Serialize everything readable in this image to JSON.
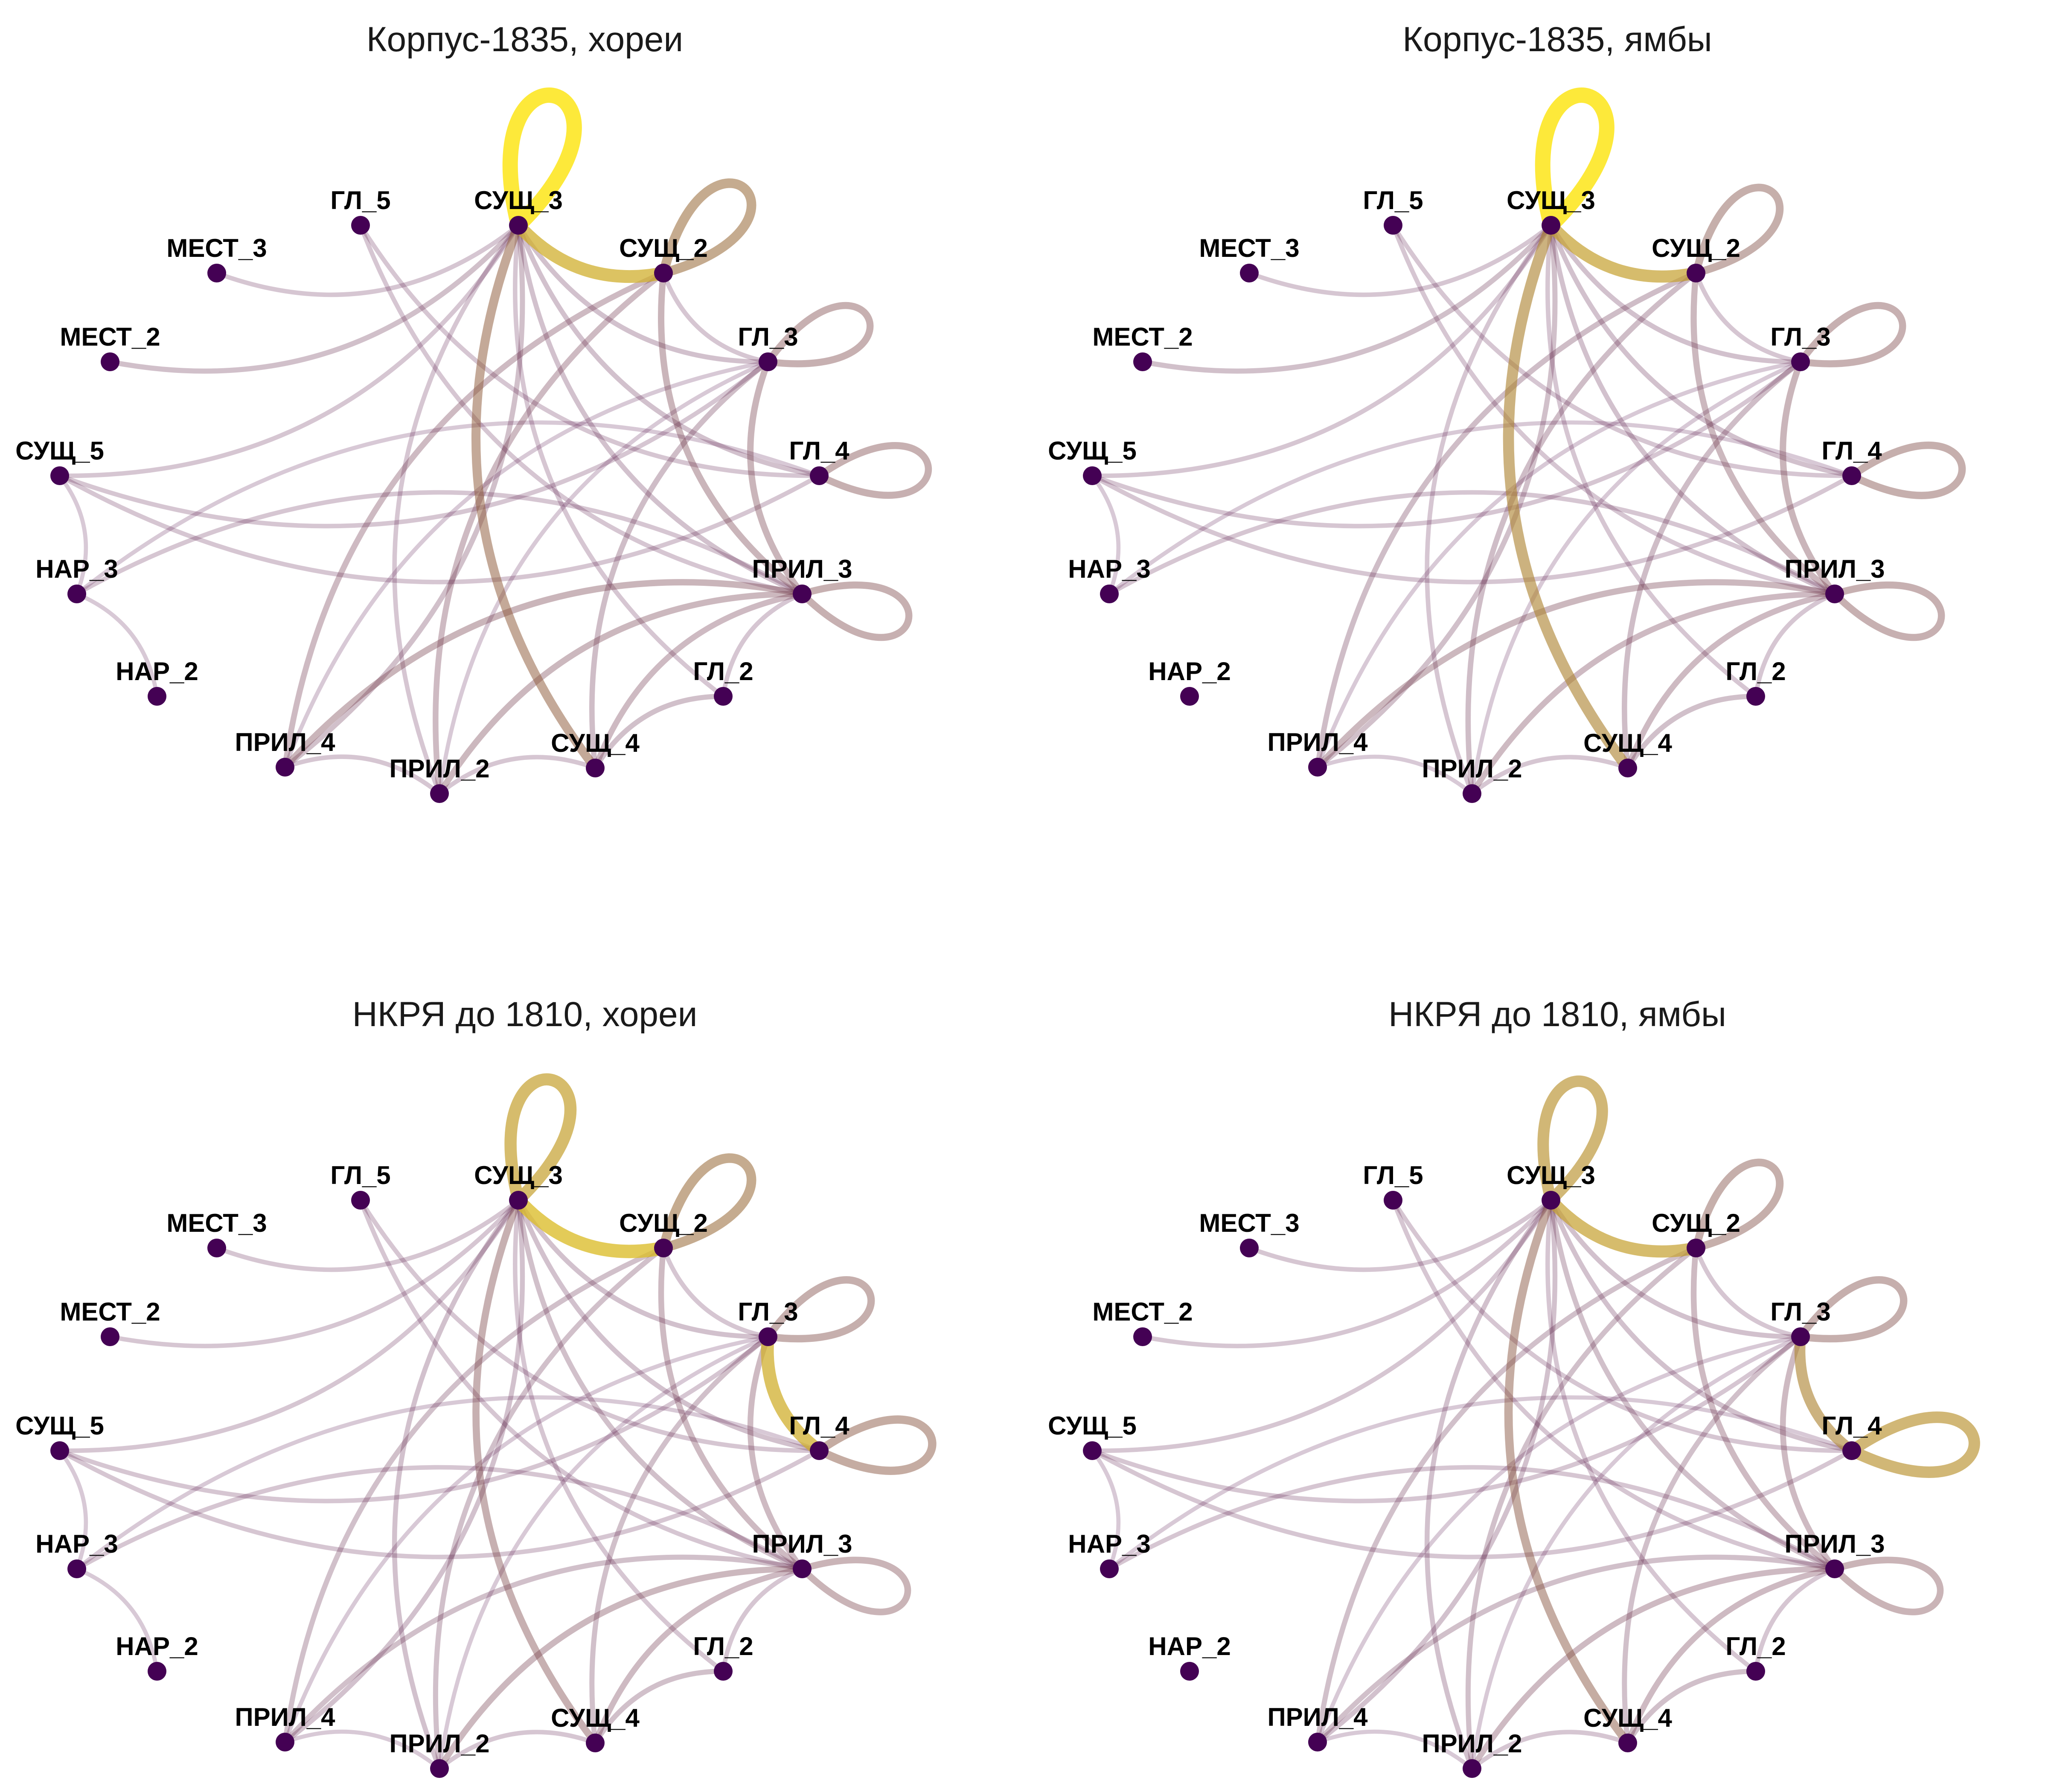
{
  "chart_data": {
    "type": "network",
    "node_color": "#440154",
    "edge_colors": {
      "low": "#440154",
      "mid": "#8d5b3a",
      "high": "#fde725"
    },
    "nodes": [
      "ГЛ_5",
      "СУЩ_3",
      "СУЩ_2",
      "ГЛ_3",
      "ГЛ_4",
      "ПРИЛ_3",
      "ГЛ_2",
      "СУЩ_4",
      "ПРИЛ_2",
      "ПРИЛ_4",
      "НАР_2",
      "НАР_3",
      "СУЩ_5",
      "МЕСТ_2",
      "МЕСТ_3"
    ],
    "panels": [
      {
        "title": "Корпус-1835, хореи",
        "edges": [
          [
            "СУЩ_3",
            "СУЩ_3",
            1.0
          ],
          [
            "СУЩ_3",
            "СУЩ_2",
            0.8
          ],
          [
            "СУЩ_2",
            "СУЩ_2",
            0.55
          ],
          [
            "СУЩ_3",
            "СУЩ_4",
            0.5
          ],
          [
            "ГЛ_3",
            "ГЛ_3",
            0.35
          ],
          [
            "ГЛ_4",
            "ГЛ_4",
            0.35
          ],
          [
            "ПРИЛ_3",
            "ПРИЛ_3",
            0.35
          ],
          [
            "ГЛ_3",
            "ПРИЛ_3",
            0.3
          ],
          [
            "СУЩ_2",
            "ПРИЛ_3",
            0.3
          ],
          [
            "ПРИЛ_3",
            "ПРИЛ_4",
            0.3
          ],
          [
            "ПРИЛ_3",
            "ПРИЛ_2",
            0.28
          ],
          [
            "СУЩ_2",
            "ПРИЛ_4",
            0.25
          ],
          [
            "СУЩ_2",
            "ПРИЛ_2",
            0.25
          ],
          [
            "ПРИЛ_3",
            "СУЩ_4",
            0.25
          ],
          [
            "ГЛ_3",
            "СУЩ_4",
            0.22
          ],
          [
            "СУЩ_4",
            "ГЛ_2",
            0.2
          ],
          [
            "СУЩ_3",
            "ГЛ_3",
            0.18
          ],
          [
            "СУЩ_3",
            "ГЛ_4",
            0.18
          ],
          [
            "СУЩ_3",
            "ПРИЛ_3",
            0.18
          ],
          [
            "СУЩ_3",
            "ПРИЛ_4",
            0.2
          ],
          [
            "СУЩ_3",
            "ПРИЛ_2",
            0.15
          ],
          [
            "СУЩ_3",
            "МЕСТ_2",
            0.2
          ],
          [
            "СУЩ_3",
            "МЕСТ_3",
            0.15
          ],
          [
            "СУЩ_3",
            "СУЩ_5",
            0.15
          ],
          [
            "СУЩ_3",
            "ГЛ_2",
            0.15
          ],
          [
            "ГЛ_5",
            "ГЛ_4",
            0.15
          ],
          [
            "ГЛ_5",
            "ПРИЛ_3",
            0.15
          ],
          [
            "ГЛ_3",
            "СУЩ_5",
            0.15
          ],
          [
            "ГЛ_4",
            "СУЩ_5",
            0.15
          ],
          [
            "ПРИЛ_3",
            "НАР_3",
            0.15
          ],
          [
            "ГЛ_4",
            "НАР_3",
            0.12
          ],
          [
            "СУЩ_5",
            "НАР_3",
            0.12
          ],
          [
            "НАР_3",
            "НАР_2",
            0.12
          ],
          [
            "ПРИЛ_4",
            "ПРИЛ_2",
            0.15
          ],
          [
            "ПРИЛ_2",
            "СУЩ_4",
            0.15
          ],
          [
            "ПРИЛ_3",
            "ГЛ_2",
            0.15
          ],
          [
            "СУЩ_2",
            "ГЛ_3",
            0.15
          ],
          [
            "ГЛ_3",
            "ПРИЛ_2",
            0.12
          ],
          [
            "ПРИЛ_4",
            "ГЛ_3",
            0.12
          ]
        ]
      },
      {
        "title": "Корпус-1835, ямбы",
        "edges": [
          [
            "СУЩ_3",
            "СУЩ_3",
            1.0
          ],
          [
            "СУЩ_3",
            "СУЩ_2",
            0.75
          ],
          [
            "СУЩ_3",
            "СУЩ_4",
            0.65
          ],
          [
            "СУЩ_2",
            "СУЩ_2",
            0.4
          ],
          [
            "ГЛ_3",
            "ГЛ_3",
            0.35
          ],
          [
            "ГЛ_4",
            "ГЛ_4",
            0.38
          ],
          [
            "ПРИЛ_3",
            "ПРИЛ_3",
            0.35
          ],
          [
            "ГЛ_3",
            "ПРИЛ_3",
            0.3
          ],
          [
            "СУЩ_2",
            "ПРИЛ_3",
            0.28
          ],
          [
            "ПРИЛ_3",
            "ПРИЛ_4",
            0.28
          ],
          [
            "ПРИЛ_3",
            "ПРИЛ_2",
            0.25
          ],
          [
            "СУЩ_2",
            "ПРИЛ_4",
            0.22
          ],
          [
            "СУЩ_2",
            "ПРИЛ_2",
            0.22
          ],
          [
            "ПРИЛ_3",
            "СУЩ_4",
            0.25
          ],
          [
            "ГЛ_3",
            "СУЩ_4",
            0.22
          ],
          [
            "СУЩ_4",
            "ГЛ_2",
            0.2
          ],
          [
            "СУЩ_3",
            "ГЛ_3",
            0.18
          ],
          [
            "СУЩ_3",
            "ГЛ_4",
            0.18
          ],
          [
            "СУЩ_3",
            "ПРИЛ_3",
            0.18
          ],
          [
            "СУЩ_3",
            "ПРИЛ_4",
            0.2
          ],
          [
            "СУЩ_3",
            "ПРИЛ_2",
            0.15
          ],
          [
            "СУЩ_3",
            "МЕСТ_2",
            0.2
          ],
          [
            "СУЩ_3",
            "МЕСТ_3",
            0.15
          ],
          [
            "СУЩ_3",
            "СУЩ_5",
            0.15
          ],
          [
            "СУЩ_3",
            "ГЛ_2",
            0.15
          ],
          [
            "ГЛ_5",
            "ГЛ_4",
            0.15
          ],
          [
            "ГЛ_5",
            "ПРИЛ_3",
            0.15
          ],
          [
            "ГЛ_3",
            "СУЩ_5",
            0.15
          ],
          [
            "ГЛ_4",
            "СУЩ_5",
            0.15
          ],
          [
            "ПРИЛ_3",
            "НАР_3",
            0.15
          ],
          [
            "ГЛ_4",
            "НАР_3",
            0.12
          ],
          [
            "СУЩ_5",
            "НАР_3",
            0.12
          ],
          [
            "ПРИЛ_4",
            "ПРИЛ_2",
            0.12
          ],
          [
            "ПРИЛ_2",
            "СУЩ_4",
            0.15
          ],
          [
            "ПРИЛ_3",
            "ГЛ_2",
            0.15
          ],
          [
            "СУЩ_2",
            "ГЛ_3",
            0.15
          ],
          [
            "ГЛ_3",
            "ПРИЛ_2",
            0.12
          ],
          [
            "ПРИЛ_4",
            "ГЛ_3",
            0.12
          ]
        ]
      },
      {
        "title": "НКРЯ до 1810, хореи",
        "edges": [
          [
            "СУЩ_3",
            "СУЩ_3",
            0.75
          ],
          [
            "СУЩ_3",
            "СУЩ_2",
            0.85
          ],
          [
            "ГЛ_3",
            "ГЛ_4",
            0.8
          ],
          [
            "СУЩ_2",
            "СУЩ_2",
            0.55
          ],
          [
            "ГЛ_3",
            "ГЛ_3",
            0.38
          ],
          [
            "ГЛ_4",
            "ГЛ_4",
            0.45
          ],
          [
            "ПРИЛ_3",
            "ПРИЛ_3",
            0.32
          ],
          [
            "СУЩ_3",
            "СУЩ_4",
            0.35
          ],
          [
            "ГЛ_3",
            "ПРИЛ_3",
            0.25
          ],
          [
            "СУЩ_2",
            "ПРИЛ_3",
            0.25
          ],
          [
            "ПРИЛ_3",
            "ПРИЛ_4",
            0.2
          ],
          [
            "ПРИЛ_3",
            "ПРИЛ_2",
            0.28
          ],
          [
            "СУЩ_2",
            "ПРИЛ_4",
            0.2
          ],
          [
            "СУЩ_2",
            "ПРИЛ_2",
            0.2
          ],
          [
            "ПРИЛ_3",
            "СУЩ_4",
            0.25
          ],
          [
            "ГЛ_3",
            "СУЩ_4",
            0.2
          ],
          [
            "СУЩ_4",
            "ГЛ_2",
            0.2
          ],
          [
            "СУЩ_3",
            "ГЛ_3",
            0.18
          ],
          [
            "СУЩ_3",
            "ГЛ_4",
            0.18
          ],
          [
            "СУЩ_3",
            "ПРИЛ_3",
            0.2
          ],
          [
            "СУЩ_3",
            "ПРИЛ_4",
            0.18
          ],
          [
            "СУЩ_3",
            "ПРИЛ_2",
            0.18
          ],
          [
            "СУЩ_3",
            "МЕСТ_2",
            0.15
          ],
          [
            "СУЩ_3",
            "МЕСТ_3",
            0.15
          ],
          [
            "СУЩ_3",
            "СУЩ_5",
            0.15
          ],
          [
            "СУЩ_3",
            "ГЛ_2",
            0.15
          ],
          [
            "ГЛ_5",
            "ГЛ_4",
            0.15
          ],
          [
            "ГЛ_5",
            "ПРИЛ_3",
            0.15
          ],
          [
            "ГЛ_3",
            "СУЩ_5",
            0.15
          ],
          [
            "ГЛ_4",
            "СУЩ_5",
            0.15
          ],
          [
            "ПРИЛ_3",
            "НАР_3",
            0.15
          ],
          [
            "ГЛ_4",
            "НАР_3",
            0.12
          ],
          [
            "СУЩ_5",
            "НАР_3",
            0.12
          ],
          [
            "НАР_3",
            "НАР_2",
            0.12
          ],
          [
            "ПРИЛ_4",
            "ПРИЛ_2",
            0.12
          ],
          [
            "ПРИЛ_2",
            "СУЩ_4",
            0.15
          ],
          [
            "ПРИЛ_3",
            "ГЛ_2",
            0.15
          ],
          [
            "СУЩ_2",
            "ГЛ_3",
            0.15
          ],
          [
            "ГЛ_3",
            "ПРИЛ_2",
            0.12
          ],
          [
            "ПРИЛ_4",
            "ГЛ_3",
            0.12
          ]
        ]
      },
      {
        "title": "НКРЯ до 1810, ямбы",
        "edges": [
          [
            "СУЩ_3",
            "СУЩ_3",
            0.7
          ],
          [
            "СУЩ_3",
            "СУЩ_2",
            0.75
          ],
          [
            "ГЛ_3",
            "ГЛ_4",
            0.65
          ],
          [
            "ГЛ_4",
            "ГЛ_4",
            0.7
          ],
          [
            "СУЩ_2",
            "СУЩ_2",
            0.4
          ],
          [
            "ГЛ_3",
            "ГЛ_3",
            0.38
          ],
          [
            "ПРИЛ_3",
            "ПРИЛ_3",
            0.32
          ],
          [
            "СУЩ_3",
            "СУЩ_4",
            0.45
          ],
          [
            "ГЛ_3",
            "ПРИЛ_3",
            0.25
          ],
          [
            "СУЩ_2",
            "ПРИЛ_3",
            0.25
          ],
          [
            "ПРИЛ_3",
            "ПРИЛ_4",
            0.2
          ],
          [
            "ПРИЛ_3",
            "ПРИЛ_2",
            0.25
          ],
          [
            "СУЩ_2",
            "ПРИЛ_4",
            0.2
          ],
          [
            "СУЩ_2",
            "ПРИЛ_2",
            0.2
          ],
          [
            "ПРИЛ_3",
            "СУЩ_4",
            0.25
          ],
          [
            "ГЛ_3",
            "СУЩ_4",
            0.2
          ],
          [
            "СУЩ_4",
            "ГЛ_2",
            0.2
          ],
          [
            "СУЩ_3",
            "ГЛ_3",
            0.18
          ],
          [
            "СУЩ_3",
            "ГЛ_4",
            0.18
          ],
          [
            "СУЩ_3",
            "ПРИЛ_3",
            0.2
          ],
          [
            "СУЩ_3",
            "ПРИЛ_4",
            0.18
          ],
          [
            "СУЩ_3",
            "ПРИЛ_2",
            0.18
          ],
          [
            "СУЩ_3",
            "МЕСТ_2",
            0.15
          ],
          [
            "СУЩ_3",
            "МЕСТ_3",
            0.15
          ],
          [
            "СУЩ_3",
            "СУЩ_5",
            0.15
          ],
          [
            "СУЩ_3",
            "ГЛ_2",
            0.15
          ],
          [
            "ГЛ_5",
            "ГЛ_4",
            0.15
          ],
          [
            "ГЛ_5",
            "ПРИЛ_3",
            0.15
          ],
          [
            "ГЛ_3",
            "СУЩ_5",
            0.15
          ],
          [
            "ГЛ_4",
            "СУЩ_5",
            0.15
          ],
          [
            "ПРИЛ_3",
            "НАР_3",
            0.15
          ],
          [
            "ГЛ_4",
            "НАР_3",
            0.12
          ],
          [
            "СУЩ_5",
            "НАР_3",
            0.12
          ],
          [
            "ПРИЛ_4",
            "ПРИЛ_2",
            0.12
          ],
          [
            "ПРИЛ_2",
            "СУЩ_4",
            0.15
          ],
          [
            "ПРИЛ_3",
            "ГЛ_2",
            0.15
          ],
          [
            "СУЩ_2",
            "ГЛ_3",
            0.15
          ],
          [
            "ГЛ_3",
            "ПРИЛ_2",
            0.12
          ],
          [
            "ПРИЛ_4",
            "ГЛ_3",
            0.12
          ]
        ]
      }
    ]
  }
}
